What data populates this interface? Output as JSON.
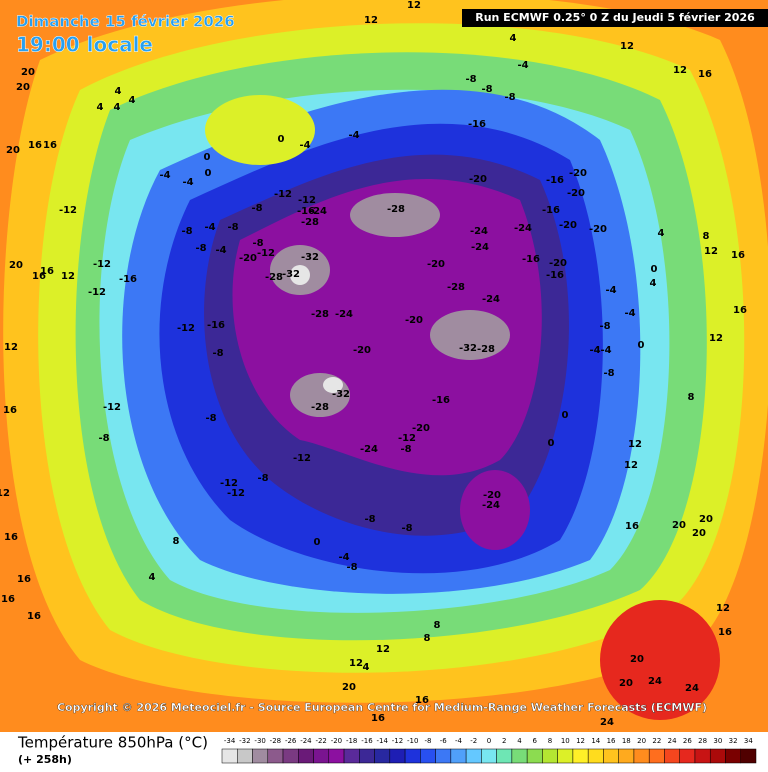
{
  "header": {
    "date": "Dimanche 15 février 2026",
    "time": "19:00 locale",
    "run": "Run ECMWF 0.25° 0 Z du Jeudi 5 février 2026"
  },
  "copyright": "Copyright © 2026 Meteociel.fr - Source European Centre for Medium-Range Weather Forecasts (ECMWF)",
  "map": {
    "labels": [
      12,
      12,
      4,
      12,
      12,
      16,
      -4,
      -8,
      -8,
      -8,
      20,
      20,
      4,
      4,
      4,
      4,
      16,
      16,
      20,
      0,
      -4,
      -4,
      0,
      0,
      -4,
      -4,
      -16,
      -20,
      -20,
      -16,
      -20,
      -16,
      -24,
      -20,
      -20,
      -24,
      -24,
      -28,
      -20,
      -16,
      -20,
      -16,
      -28,
      -24,
      -20,
      -32,
      -28,
      -20,
      -24,
      -28,
      -28,
      -32,
      -32,
      -28,
      -32,
      -12,
      -12,
      -16,
      -24,
      -28,
      -8,
      -8,
      -8,
      -4,
      -8,
      -8,
      -4,
      -20,
      -12,
      -12,
      -12,
      -12,
      -16,
      -12,
      -16,
      -8,
      -12,
      -8,
      -8,
      -12,
      -12,
      -8,
      -12,
      -24,
      -8,
      -12,
      -20,
      -16,
      -20,
      -24,
      -8,
      -8,
      0,
      -4,
      -8,
      0,
      12,
      12,
      0,
      -8,
      -8,
      -4,
      -4,
      0,
      -4,
      -4,
      0,
      4,
      4,
      8,
      12,
      16,
      12,
      8,
      16,
      16,
      20,
      20,
      20,
      16,
      12,
      16,
      16,
      16,
      4,
      8,
      12,
      12,
      8,
      8,
      4,
      20,
      16,
      16,
      20,
      24,
      20,
      24,
      24,
      16,
      12,
      20,
      16,
      12,
      16,
      12,
      16
    ]
  },
  "legend": {
    "title": "Température 850hPa (°C)",
    "lead_time": "(+ 258h)",
    "ticks": [
      -34,
      -32,
      -30,
      -28,
      -26,
      -24,
      -22,
      -20,
      -18,
      -16,
      -14,
      -12,
      -10,
      -8,
      -6,
      -4,
      -2,
      0,
      2,
      4,
      6,
      8,
      10,
      12,
      14,
      16,
      18,
      20,
      22,
      24,
      26,
      28,
      30,
      32,
      34
    ],
    "colors": [
      "#e6e6e6",
      "#c8c8c8",
      "#a08ca0",
      "#8c5a8c",
      "#7a3a82",
      "#6a1a78",
      "#7a1490",
      "#8c10a0",
      "#5a2a9a",
      "#3c2896",
      "#2828a0",
      "#1e1eb4",
      "#1e32dc",
      "#2850f0",
      "#3c78f5",
      "#50a0fa",
      "#64c8ff",
      "#78e6f0",
      "#6ee6b4",
      "#78dc78",
      "#8cdc50",
      "#b4e632",
      "#dcf028",
      "#fff028",
      "#ffdc1e",
      "#ffc31e",
      "#ffaa1e",
      "#ff8c1e",
      "#ff6e1e",
      "#f5461e",
      "#e6281e",
      "#c81414",
      "#aa0a0a",
      "#7a0000",
      "#500000"
    ]
  }
}
